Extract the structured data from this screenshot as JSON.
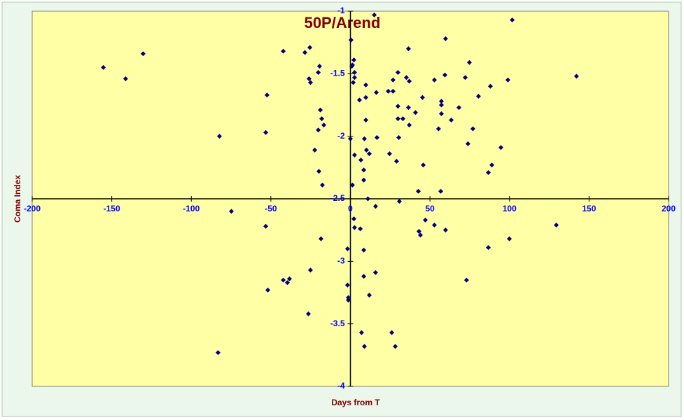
{
  "chart_data": {
    "type": "scatter",
    "title": "50P/Arend",
    "x_label": "Days from T",
    "y_label": "Coma Index",
    "xlim": [
      -200,
      200
    ],
    "xticks": [
      -200,
      -150,
      -100,
      -50,
      0,
      50,
      100,
      150,
      200
    ],
    "ylim": [
      -4,
      -1
    ],
    "yticks": [
      -1,
      -1.5,
      -2,
      -2.5,
      -3,
      -3.5,
      -4
    ],
    "series": [
      {
        "name": "50P/Arend",
        "color": "#000080",
        "x": [
          -155.3,
          -141.3,
          -130.3,
          -82.3,
          -74.8,
          -83.2,
          -52.4,
          -53.2,
          -53.2,
          -51.9,
          -42.2,
          -42.2,
          -39.6,
          -38.3,
          -28.6,
          -25.5,
          -26.0,
          -25.1,
          -25.1,
          -26.4,
          -22.4,
          -20.2,
          -19.4,
          -19.8,
          -20.2,
          -18.9,
          -18.0,
          -16.7,
          -17.6,
          -18.5,
          0,
          0.4,
          0.9,
          1.3,
          2.2,
          1.8,
          2.6,
          2.6,
          1.3,
          2.6,
          2.2,
          2.6,
          -1.8,
          -1.8,
          -1.3,
          -1.3,
          5.7,
          6.6,
          6.2,
          7.0,
          8.4,
          8.4,
          8.8,
          8.8,
          8.4,
          8.4,
          9.7,
          9.7,
          9.7,
          10.1,
          11.9,
          11.0,
          11.9,
          15.0,
          16.3,
          16.7,
          15.8,
          15.8,
          23.8,
          24.6,
          26.8,
          26.8,
          26.0,
          28.2,
          29.0,
          29.9,
          29.9,
          29.9,
          30.4,
          30.8,
          33.0,
          35.2,
          37.0,
          36.5,
          36.5,
          37.0,
          40.9,
          42.7,
          43.1,
          44.0,
          45.3,
          45.8,
          47.1,
          52.8,
          52.8,
          55.4,
          56.8,
          57.2,
          57.2,
          57.2,
          59.8,
          59.4,
          59.8,
          63.4,
          68.2,
          72.2,
          73.0,
          73.9,
          74.8,
          77.0,
          80.5,
          86.7,
          86.7,
          88.0,
          88.9,
          94.6,
          99.0,
          99.9,
          101.7,
          129.4,
          142.1
        ],
        "values": [
          -1.45,
          -1.54,
          -1.34,
          -2.0,
          -2.6,
          -3.73,
          -1.67,
          -1.97,
          -2.72,
          -3.23,
          -1.32,
          -3.15,
          -3.17,
          -3.14,
          -1.33,
          -1.29,
          -1.54,
          -1.57,
          -3.07,
          -3.42,
          -2.11,
          -1.49,
          -1.44,
          -2.28,
          -1.95,
          -1.79,
          -1.86,
          -1.91,
          -2.39,
          -2.82,
          -2.02,
          -1.23,
          -1.44,
          -1.43,
          -1.39,
          -1.57,
          -1.49,
          -1.53,
          -2.39,
          -2.15,
          -2.66,
          -2.73,
          -2.9,
          -3.19,
          -3.29,
          -3.31,
          -1.71,
          -2.19,
          -2.74,
          -3.57,
          -2.27,
          -2.35,
          -2.02,
          -3.68,
          -2.91,
          -3.12,
          -1.59,
          -1.69,
          -1.87,
          -2.11,
          -2.14,
          -2.5,
          -3.27,
          -1.03,
          -1.65,
          -2.01,
          -2.56,
          -3.09,
          -1.64,
          -2.14,
          -1.64,
          -1.55,
          -3.57,
          -3.68,
          -2.2,
          -1.49,
          -1.76,
          -1.86,
          -2.01,
          -2.52,
          -1.86,
          -1.53,
          -1.56,
          -1.3,
          -1.77,
          -1.91,
          -1.81,
          -2.44,
          -2.76,
          -2.79,
          -1.69,
          -2.23,
          -2.67,
          -1.55,
          -2.71,
          -1.94,
          -2.44,
          -1.72,
          -1.75,
          -1.82,
          -1.22,
          -1.51,
          -2.75,
          -1.87,
          -1.77,
          -1.53,
          -3.15,
          -2.06,
          -1.41,
          -1.94,
          -1.68,
          -2.29,
          -2.89,
          -1.6,
          -2.23,
          -2.09,
          -1.55,
          -2.82,
          -1.07,
          -2.71,
          -1.52
        ]
      }
    ]
  }
}
